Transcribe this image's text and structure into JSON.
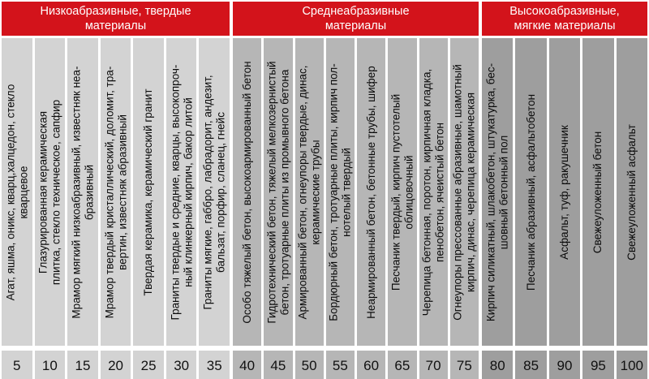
{
  "colors": {
    "background": "#ffffff",
    "header_bg": "#d3131b",
    "header_text": "#ffffff",
    "label_text": "#0a0a0a",
    "value_text": "#111111"
  },
  "chart_data": {
    "type": "table",
    "title": "",
    "xlabel": "",
    "ylabel": "",
    "value_scale": [
      5,
      10,
      15,
      20,
      25,
      30,
      35,
      40,
      45,
      50,
      55,
      60,
      65,
      70,
      75,
      80,
      85,
      90,
      95,
      100
    ],
    "groups": [
      {
        "id": "low-abrasive-hard-materials",
        "header": "Низкоабразивные, твердые\nматериалы",
        "color": "#d3d3d3",
        "columns": [
          {
            "label": "Агат, яшма, оникс, кварц,халцедон, стекло\nкварцевое",
            "value": 5
          },
          {
            "label": "Глазурированная керамическая\nплитка, стекло техническое, сапфир",
            "value": 10
          },
          {
            "label": "Мрамор мягкий низкоабразивный, известняк неа-\nбразивный",
            "value": 15
          },
          {
            "label": "Мрамор твердый кристаллический, доломит, тра-\nвертин, известняк абразивный",
            "value": 20
          },
          {
            "label": "Твердая керамика, керамический гранит",
            "value": 25
          },
          {
            "label": "Граниты твердые и средние, кварцы, высокопроч-\nный клинкерный кирпич, бакор литой",
            "value": 30
          },
          {
            "label": "Граниты мягкие, габбро, лабрадорит, андезит,\nбальзат, порфир, сланец, гнейс",
            "value": 35
          }
        ]
      },
      {
        "id": "medium-abrasive-materials",
        "header": "Среднеабразивные\nматериалы",
        "color": "#b6b6b6",
        "columns": [
          {
            "label": "Особо тяжелый бетон, высокоармированный бетон",
            "value": 40
          },
          {
            "label": "Гидротехнический бетон, тяжелый мелкозернистый\nбетон, тротуарные плиты из промывного бетона",
            "value": 45
          },
          {
            "label": "Армированный бетон, огнеупоры твердые, динас,\nкерамические трубы",
            "value": 50
          },
          {
            "label": "Бордюрный бетон, тротуарные плиты, кирпич пол-\nнотелый твердый",
            "value": 55
          },
          {
            "label": "Неармированный бетон, бетонные трубы, шифер",
            "value": 60
          },
          {
            "label": "Песчаник твердый, кирпич пустотелый\nоблицовочный",
            "value": 65
          },
          {
            "label": "Черепица бетонная, поротон, кирпичная кладка,\nпенобетон, ячеистый бетон",
            "value": 70
          },
          {
            "label": "Огнеупоры прессованные абразивные, шамотный\nкирпич, динас, черепица керамическая",
            "value": 75
          }
        ]
      },
      {
        "id": "high-abrasive-soft-materials",
        "header": "Высокоабразивные,\nмягкие материалы",
        "color": "#9e9e9e",
        "columns": [
          {
            "label": "Кирпич силикатный, шлакобетон, штукатурка, бес-\nшовный бетонный пол",
            "value": 80
          },
          {
            "label": "Песчаник абразивный, асфальтобетон",
            "value": 85
          },
          {
            "label": "Асфальт, туф, ракушечник",
            "value": 90
          },
          {
            "label": "Свежеуложенный бетон",
            "value": 95
          },
          {
            "label": "Свежеуложенный асфальт",
            "value": 100
          }
        ]
      }
    ]
  }
}
